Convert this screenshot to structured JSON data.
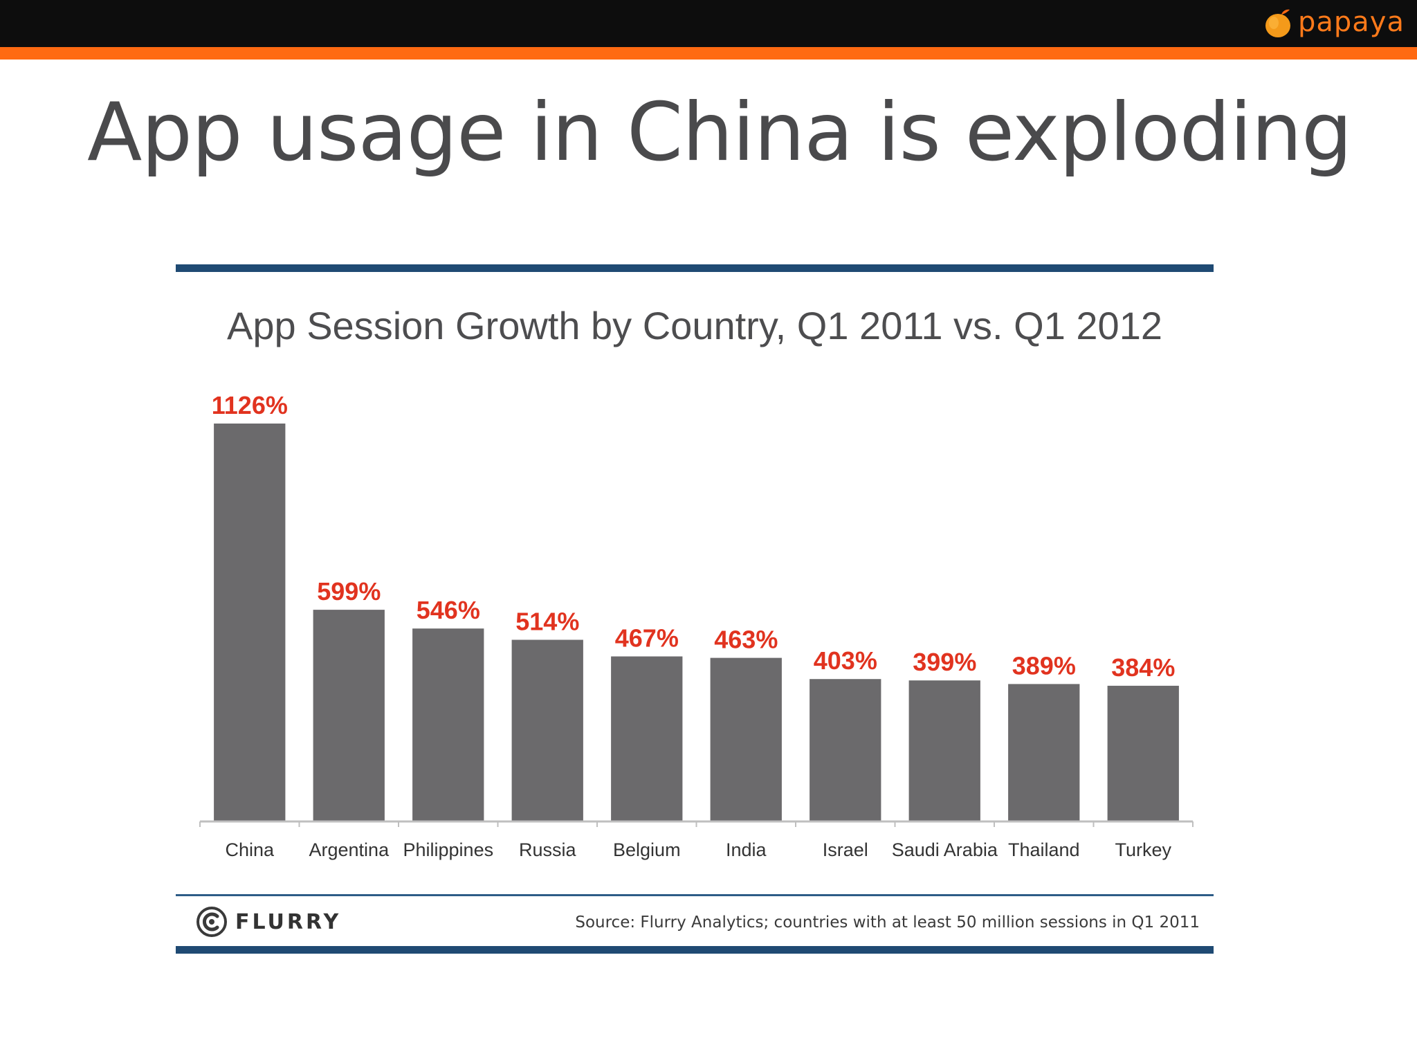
{
  "brand": {
    "name": "papaya",
    "color": "#ff7a1a",
    "logo_icon": "papaya-fruit-icon"
  },
  "slide": {
    "title": "App usage in China is exploding",
    "header_bar_color": "#0d0d0d",
    "accent_color": "#ff6a12"
  },
  "footer": {
    "logo_text": "FLURRY",
    "logo_icon": "flurry-swirl-icon",
    "source": "Source: Flurry Analytics; countries with at least 50 million sessions in Q1 2011"
  },
  "chart_data": {
    "type": "bar",
    "title": "App Session Growth by Country, Q1 2011 vs. Q1 2012",
    "xlabel": "",
    "ylabel": "",
    "categories": [
      "China",
      "Argentina",
      "Philippines",
      "Russia",
      "Belgium",
      "India",
      "Israel",
      "Saudi Arabia",
      "Thailand",
      "Turkey"
    ],
    "values": [
      1126,
      599,
      546,
      514,
      467,
      463,
      403,
      399,
      389,
      384
    ],
    "data_labels": [
      "1126%",
      "599%",
      "546%",
      "514%",
      "467%",
      "463%",
      "403%",
      "399%",
      "389%",
      "384%"
    ],
    "value_unit": "%",
    "ylim": [
      0,
      1126
    ],
    "grid": false,
    "legend": "none",
    "bar_color": "#6b6a6c",
    "label_color": "#e1331f",
    "axis_color": "#bfbfbf"
  }
}
